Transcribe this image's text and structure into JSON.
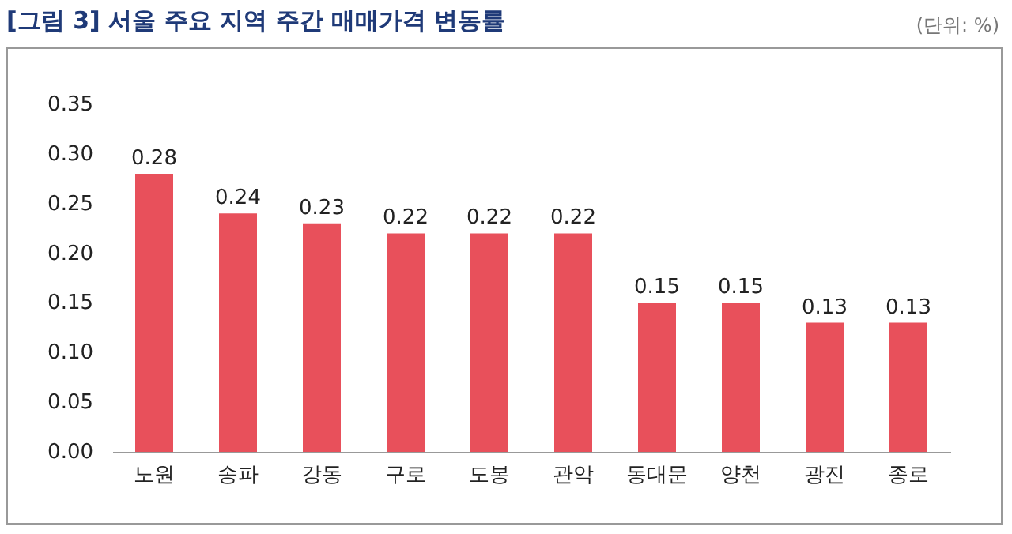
{
  "chart_data": {
    "type": "bar",
    "title": "[그림 3] 서울 주요 지역 주간 매매가격 변동률",
    "annotations": [
      "(단위: %)"
    ],
    "categories": [
      "노원",
      "송파",
      "강동",
      "구로",
      "도봉",
      "관악",
      "동대문",
      "양천",
      "광진",
      "종로"
    ],
    "values": [
      0.28,
      0.24,
      0.23,
      0.22,
      0.22,
      0.22,
      0.15,
      0.15,
      0.13,
      0.13
    ],
    "color": "#e8505b",
    "ylim": [
      0,
      0.35
    ],
    "yticks": [
      {
        "value": 0,
        "label": "0.00"
      },
      {
        "value": 0.05,
        "label": "0.05"
      },
      {
        "value": 0.1,
        "label": "0.10"
      },
      {
        "value": 0.15,
        "label": "0.15"
      },
      {
        "value": 0.2,
        "label": "0.20"
      },
      {
        "value": 0.25,
        "label": "0.25"
      },
      {
        "value": 0.3,
        "label": "0.30"
      },
      {
        "value": 0.35,
        "label": "0.35"
      }
    ],
    "data_labels": true,
    "grid": false
  }
}
